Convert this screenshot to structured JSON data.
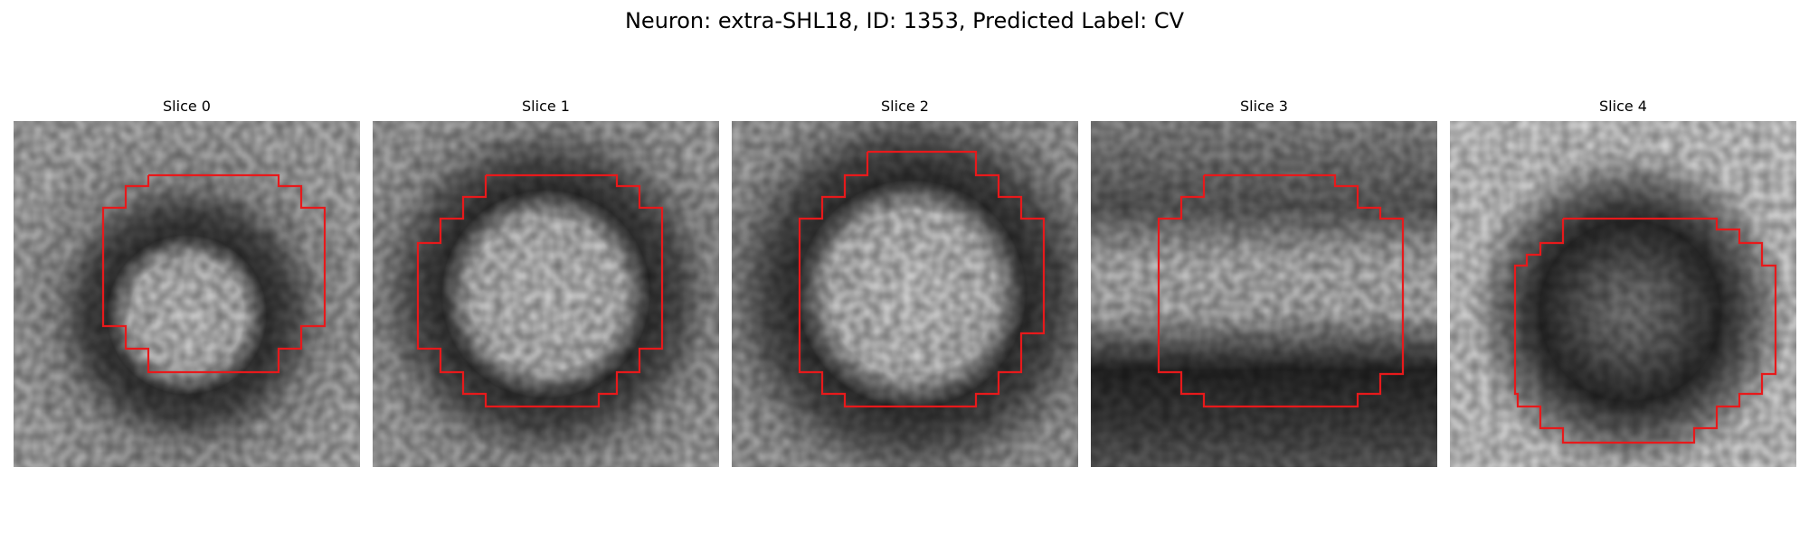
{
  "figure": {
    "title": "Neuron: extra-SHL18, ID: 1353, Predicted Label: CV"
  },
  "contour_color": "#e8191b",
  "slices": [
    {
      "label": "Slice 0"
    },
    {
      "label": "Slice 1"
    },
    {
      "label": "Slice 2"
    },
    {
      "label": "Slice 3"
    },
    {
      "label": "Slice 4"
    }
  ]
}
